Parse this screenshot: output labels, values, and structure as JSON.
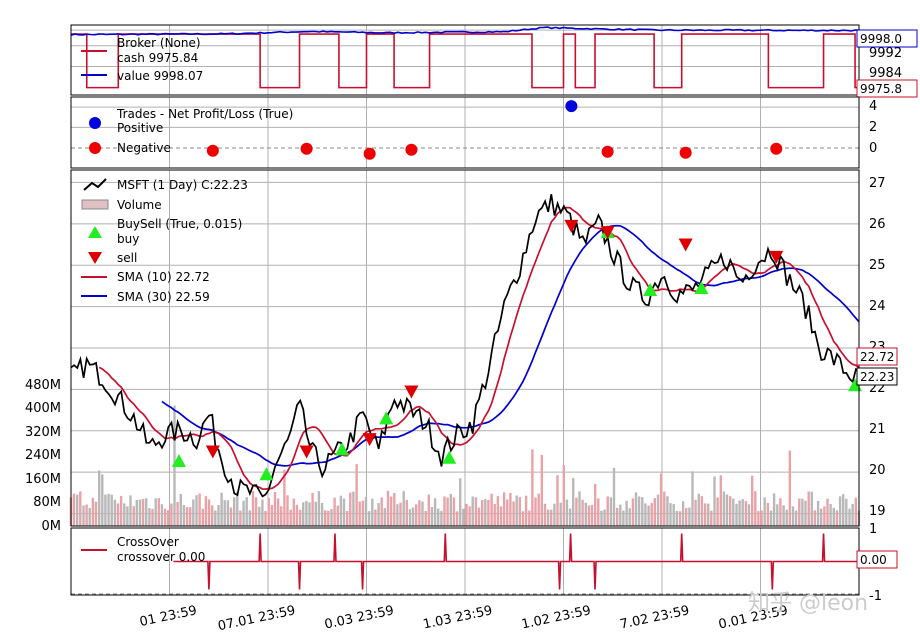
{
  "chart_data": {
    "type": "line",
    "x_ticks": [
      "01 23:59",
      "07.01 23:59",
      "0.03 23:59",
      "1.03 23:59",
      "1.02 23:59",
      "7.02 23:59",
      "0.01 23:59"
    ],
    "watermark": "知乎 @leon",
    "panels": {
      "broker": {
        "legend": [
          "Broker (None)",
          "cash 9975.84",
          "value 9998.07"
        ],
        "y_ticks": [
          "9998.0",
          "9992",
          "9984",
          "9975.8"
        ],
        "ylim": [
          9973,
          10000
        ],
        "value_tag": "9998.0",
        "cash_tag": "9975.8",
        "value_level": 9998.07,
        "cash_level": 9975.84,
        "colors": {
          "cash": "#c8102e",
          "value": "#0000cc"
        }
      },
      "trades": {
        "legend": [
          "Trades - Net Profit/Loss (True)",
          "Positive",
          "Negative"
        ],
        "y_ticks": [
          "4",
          "2",
          "0"
        ],
        "ylim": [
          -2,
          5
        ],
        "positive": [
          {
            "x": 0.635,
            "y": 4.1
          }
        ],
        "negative": [
          {
            "x": 0.18,
            "y": -0.3
          },
          {
            "x": 0.299,
            "y": -0.1
          },
          {
            "x": 0.379,
            "y": -0.6
          },
          {
            "x": 0.432,
            "y": -0.2
          },
          {
            "x": 0.681,
            "y": -0.4
          },
          {
            "x": 0.78,
            "y": -0.5
          },
          {
            "x": 0.895,
            "y": -0.1
          }
        ],
        "colors": {
          "positive": "#0000dd",
          "negative": "#ee0000"
        }
      },
      "price": {
        "legend": [
          "MSFT (1 Day) C:22.23",
          "Volume",
          "BuySell (True, 0.015)",
          "buy",
          "sell",
          "SMA (10) 22.72",
          "SMA (30) 22.59"
        ],
        "y_ticks": [
          "27",
          "26",
          "25",
          "24",
          "23",
          "22",
          "21",
          "20",
          "19"
        ],
        "volume_ticks": [
          "480M",
          "400M",
          "320M",
          "240M",
          "160M",
          "80M",
          "0M"
        ],
        "ylim": [
          18.7,
          27.3
        ],
        "close_tag": "22.23",
        "sma10_tag": "22.72",
        "close_anchors": [
          [
            0.0,
            22.3
          ],
          [
            0.02,
            22.6
          ],
          [
            0.04,
            22.3
          ],
          [
            0.06,
            21.8
          ],
          [
            0.08,
            21.3
          ],
          [
            0.1,
            20.6
          ],
          [
            0.12,
            20.9
          ],
          [
            0.14,
            21.0
          ],
          [
            0.16,
            20.8
          ],
          [
            0.175,
            21.4
          ],
          [
            0.19,
            20.4
          ],
          [
            0.21,
            19.6
          ],
          [
            0.23,
            19.5
          ],
          [
            0.245,
            19.3
          ],
          [
            0.26,
            20.2
          ],
          [
            0.275,
            20.7
          ],
          [
            0.29,
            21.6
          ],
          [
            0.305,
            20.5
          ],
          [
            0.32,
            20.1
          ],
          [
            0.34,
            20.5
          ],
          [
            0.355,
            20.8
          ],
          [
            0.37,
            21.4
          ],
          [
            0.39,
            20.5
          ],
          [
            0.41,
            21.8
          ],
          [
            0.43,
            21.5
          ],
          [
            0.45,
            21.2
          ],
          [
            0.47,
            20.4
          ],
          [
            0.49,
            20.9
          ],
          [
            0.51,
            21.2
          ],
          [
            0.53,
            22.5
          ],
          [
            0.55,
            24.0
          ],
          [
            0.57,
            25.0
          ],
          [
            0.59,
            26.2
          ],
          [
            0.61,
            26.5
          ],
          [
            0.63,
            26.2
          ],
          [
            0.65,
            25.5
          ],
          [
            0.67,
            26.0
          ],
          [
            0.69,
            25.2
          ],
          [
            0.71,
            24.5
          ],
          [
            0.73,
            24.2
          ],
          [
            0.75,
            24.8
          ],
          [
            0.77,
            24.3
          ],
          [
            0.79,
            24.4
          ],
          [
            0.81,
            24.8
          ],
          [
            0.83,
            25.2
          ],
          [
            0.85,
            24.6
          ],
          [
            0.87,
            25.1
          ],
          [
            0.89,
            25.4
          ],
          [
            0.91,
            24.7
          ],
          [
            0.93,
            24.1
          ],
          [
            0.95,
            23.0
          ],
          [
            0.97,
            22.7
          ],
          [
            0.985,
            22.4
          ],
          [
            1.0,
            22.23
          ]
        ],
        "buy_markers": [
          {
            "x": 0.137,
            "y": 20.27
          },
          {
            "x": 0.248,
            "y": 19.95
          },
          {
            "x": 0.344,
            "y": 20.55
          },
          {
            "x": 0.4,
            "y": 21.3
          },
          {
            "x": 0.48,
            "y": 20.35
          },
          {
            "x": 0.681,
            "y": 25.8
          },
          {
            "x": 0.735,
            "y": 24.4
          },
          {
            "x": 0.8,
            "y": 24.45
          },
          {
            "x": 0.995,
            "y": 22.1
          }
        ],
        "sell_markers": [
          {
            "x": 0.18,
            "y": 20.5
          },
          {
            "x": 0.299,
            "y": 20.5
          },
          {
            "x": 0.379,
            "y": 20.8
          },
          {
            "x": 0.432,
            "y": 21.95
          },
          {
            "x": 0.635,
            "y": 25.95
          },
          {
            "x": 0.681,
            "y": 25.8
          },
          {
            "x": 0.78,
            "y": 25.5
          },
          {
            "x": 0.895,
            "y": 25.2
          }
        ],
        "colors": {
          "close": "#000000",
          "sma10": "#c8102e",
          "sma30": "#0000cc",
          "buy": "#22ee22",
          "sell": "#dd0000",
          "volume_up": "#e8a3a8",
          "volume_down": "#b8b8b8"
        }
      },
      "crossover": {
        "legend": [
          "CrossOver",
          "crossover 0.00"
        ],
        "y_ticks": [
          "1",
          "-1"
        ],
        "ylim": [
          -1.2,
          1.2
        ],
        "value_tag": "0.00",
        "up_x": [
          0.24,
          0.335,
          0.475,
          0.634,
          0.775,
          0.955
        ],
        "down_x": [
          0.175,
          0.29,
          0.37,
          0.62,
          0.665,
          0.89
        ],
        "colors": {
          "line": "#c8102e"
        }
      }
    }
  }
}
